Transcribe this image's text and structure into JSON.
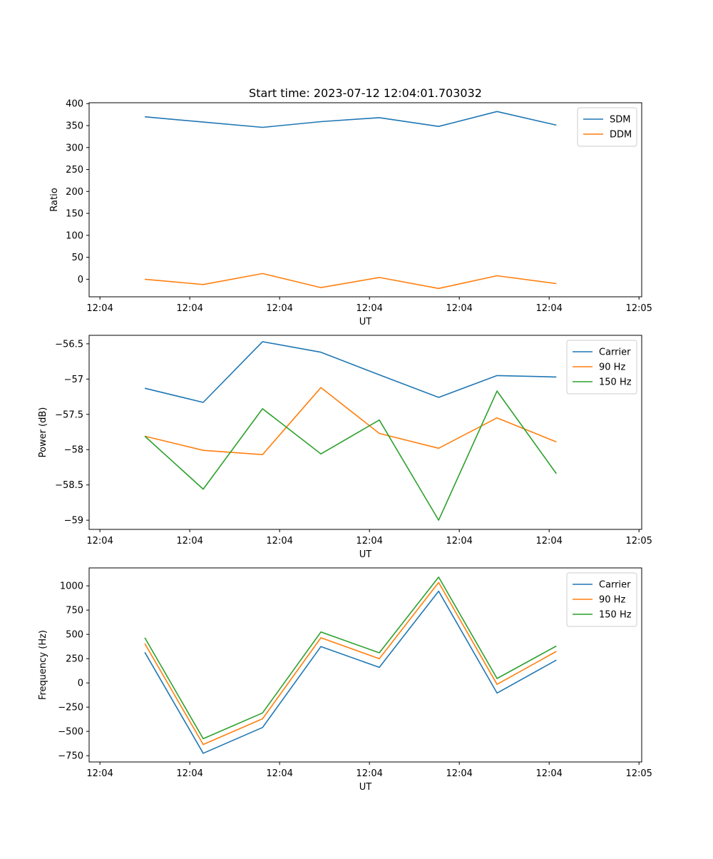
{
  "figure_title": "Start time: 2023-07-12 12:04:01.703032",
  "colors": {
    "blue": "#1f77b4",
    "orange": "#ff7f0e",
    "green": "#2ca02c"
  },
  "chart_data": [
    {
      "type": "line",
      "title": "Start time: 2023-07-12 12:04:01.703032",
      "xlabel": "UT",
      "ylabel": "Ratio",
      "x_ticks": [
        "12:04",
        "12:04",
        "12:04",
        "12:04",
        "12:04",
        "12:04",
        "12:05"
      ],
      "x_range": [
        -0.12,
        6.03
      ],
      "x": [
        0.5,
        1.15,
        1.81,
        2.46,
        3.11,
        3.77,
        4.42,
        5.08
      ],
      "ylim": [
        -40,
        402
      ],
      "y_ticks": [
        0,
        50,
        100,
        150,
        200,
        250,
        300,
        350,
        400
      ],
      "legend_position": "top-right",
      "series": [
        {
          "name": "SDM",
          "color": "#1f77b4",
          "values": [
            370,
            358,
            346,
            359,
            368,
            348,
            382,
            351
          ]
        },
        {
          "name": "DDM",
          "color": "#ff7f0e",
          "values": [
            0,
            -12,
            13,
            -19,
            4,
            -21,
            8,
            -10
          ]
        }
      ]
    },
    {
      "type": "line",
      "title": "",
      "xlabel": "UT",
      "ylabel": "Power (dB)",
      "x_ticks": [
        "12:04",
        "12:04",
        "12:04",
        "12:04",
        "12:04",
        "12:04",
        "12:05"
      ],
      "x_range": [
        -0.12,
        6.03
      ],
      "x": [
        0.5,
        1.15,
        1.81,
        2.46,
        3.11,
        3.77,
        4.42,
        5.08
      ],
      "ylim": [
        -59.13,
        -56.38
      ],
      "y_ticks": [
        -59.0,
        -58.5,
        -58.0,
        -57.5,
        -57.0,
        -56.5
      ],
      "legend_position": "top-right",
      "series": [
        {
          "name": "Carrier",
          "color": "#1f77b4",
          "values": [
            -57.13,
            -57.33,
            -56.47,
            -56.62,
            -56.94,
            -57.26,
            -56.95,
            -56.97
          ]
        },
        {
          "name": "90 Hz",
          "color": "#ff7f0e",
          "values": [
            -57.81,
            -58.01,
            -58.07,
            -57.12,
            -57.77,
            -57.98,
            -57.55,
            -57.89
          ]
        },
        {
          "name": "150 Hz",
          "color": "#2ca02c",
          "values": [
            -57.81,
            -58.56,
            -57.42,
            -58.06,
            -57.58,
            -59.0,
            -57.17,
            -58.34
          ]
        }
      ]
    },
    {
      "type": "line",
      "title": "",
      "xlabel": "UT",
      "ylabel": "Frequency (Hz)",
      "x_ticks": [
        "12:04",
        "12:04",
        "12:04",
        "12:04",
        "12:04",
        "12:04",
        "12:05"
      ],
      "x_range": [
        -0.12,
        6.03
      ],
      "x": [
        0.5,
        1.15,
        1.81,
        2.46,
        3.11,
        3.77,
        4.42,
        5.08
      ],
      "ylim": [
        -815,
        1185
      ],
      "y_ticks": [
        -750,
        -500,
        -250,
        0,
        250,
        500,
        750,
        1000
      ],
      "legend_position": "top-right",
      "series": [
        {
          "name": "Carrier",
          "color": "#1f77b4",
          "values": [
            315,
            -725,
            -460,
            375,
            160,
            945,
            -105,
            235
          ]
        },
        {
          "name": "90 Hz",
          "color": "#ff7f0e",
          "values": [
            405,
            -635,
            -370,
            465,
            250,
            1035,
            -15,
            325
          ]
        },
        {
          "name": "150 Hz",
          "color": "#2ca02c",
          "values": [
            465,
            -575,
            -310,
            525,
            310,
            1090,
            45,
            380
          ]
        }
      ]
    }
  ]
}
